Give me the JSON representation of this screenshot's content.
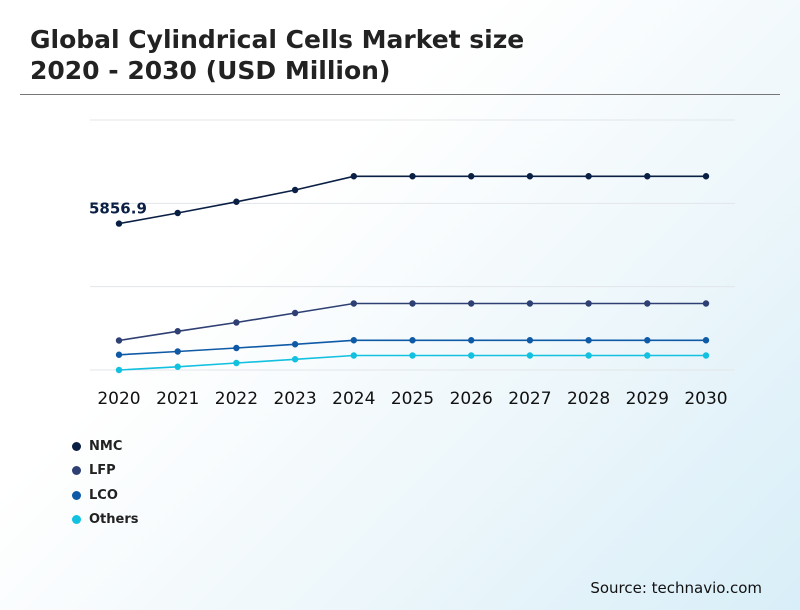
{
  "title_line1": "Global Cylindrical Cells Market size",
  "title_line2": "2020 - 2030 (USD Million)",
  "source": "Source: technavio.com",
  "chart_data": {
    "type": "line",
    "x": [
      "2020",
      "2021",
      "2022",
      "2023",
      "2024",
      "2025",
      "2026",
      "2027",
      "2028",
      "2029",
      "2030"
    ],
    "ylim": [
      0,
      10000
    ],
    "grid": true,
    "legend": "bottom-left",
    "series": [
      {
        "name": "NMC",
        "color": "#0a1f44",
        "values": [
          5856.9,
          6280,
          6730,
          7200,
          7750,
          7750,
          7750,
          7750,
          7750,
          7750,
          7750
        ]
      },
      {
        "name": "LFP",
        "color": "#2e3f73",
        "values": [
          1180,
          1550,
          1900,
          2280,
          2660,
          2660,
          2660,
          2660,
          2660,
          2660,
          2660
        ]
      },
      {
        "name": "LCO",
        "color": "#0e5aa7",
        "values": [
          610,
          740,
          880,
          1030,
          1190,
          1190,
          1190,
          1190,
          1190,
          1190,
          1190
        ]
      },
      {
        "name": "Others",
        "color": "#12c0e0",
        "values": [
          0,
          130,
          280,
          430,
          580,
          580,
          580,
          580,
          580,
          580,
          580
        ]
      }
    ],
    "annotations": [
      {
        "series": "NMC",
        "x": "2020",
        "label": "5856.9"
      }
    ]
  }
}
